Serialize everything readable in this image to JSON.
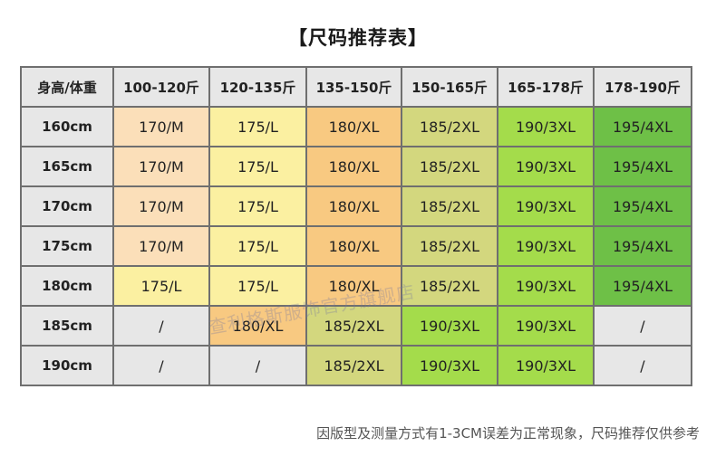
{
  "title": "【尺码推荐表】",
  "header": [
    "身高/体重",
    "100-120斤",
    "120-135斤",
    "135-150斤",
    "150-165斤",
    "165-178斤",
    "178-190斤"
  ],
  "rows": [
    {
      "height": "160cm",
      "cells": [
        "170/M",
        "175/L",
        "180/XL",
        "185/2XL",
        "190/3XL",
        "195/4XL"
      ],
      "styles": [
        "c1",
        "c2",
        "c3",
        "c4",
        "c5",
        "c6"
      ]
    },
    {
      "height": "165cm",
      "cells": [
        "170/M",
        "175/L",
        "180/XL",
        "185/2XL",
        "190/3XL",
        "195/4XL"
      ],
      "styles": [
        "c1",
        "c2",
        "c3",
        "c4",
        "c5",
        "c6"
      ]
    },
    {
      "height": "170cm",
      "cells": [
        "170/M",
        "175/L",
        "180/XL",
        "185/2XL",
        "190/3XL",
        "195/4XL"
      ],
      "styles": [
        "c1",
        "c2",
        "c3",
        "c4",
        "c5",
        "c6"
      ]
    },
    {
      "height": "175cm",
      "cells": [
        "170/M",
        "175/L",
        "180/XL",
        "185/2XL",
        "190/3XL",
        "195/4XL"
      ],
      "styles": [
        "c1",
        "c2",
        "c3",
        "c4",
        "c5",
        "c6"
      ]
    },
    {
      "height": "180cm",
      "cells": [
        "175/L",
        "175/L",
        "180/XL",
        "185/2XL",
        "190/3XL",
        "195/4XL"
      ],
      "styles": [
        "c2",
        "c2",
        "c3",
        "c4",
        "c5",
        "c6"
      ]
    },
    {
      "height": "185cm",
      "cells": [
        "/",
        "180/XL",
        "185/2XL",
        "190/3XL",
        "190/3XL",
        "/"
      ],
      "styles": [
        "na",
        "c3",
        "c4",
        "c5",
        "c5",
        "na"
      ]
    },
    {
      "height": "190cm",
      "cells": [
        "/",
        "/",
        "185/2XL",
        "190/3XL",
        "190/3XL",
        "/"
      ],
      "styles": [
        "na",
        "na",
        "c4",
        "c5",
        "c5",
        "na"
      ]
    }
  ],
  "colors": {
    "c1": "#fbdfb9",
    "c2": "#fbf0a1",
    "c3": "#f8c981",
    "c4": "#d3d77e",
    "c5": "#a4dc4b",
    "c6": "#6ec047",
    "na": "#e7e7e7"
  },
  "watermark": "查利格斯服饰官方旗舰店",
  "footer": "因版型及测量方式有1-3CM误差为正常现象，尺码推荐仅供参考"
}
